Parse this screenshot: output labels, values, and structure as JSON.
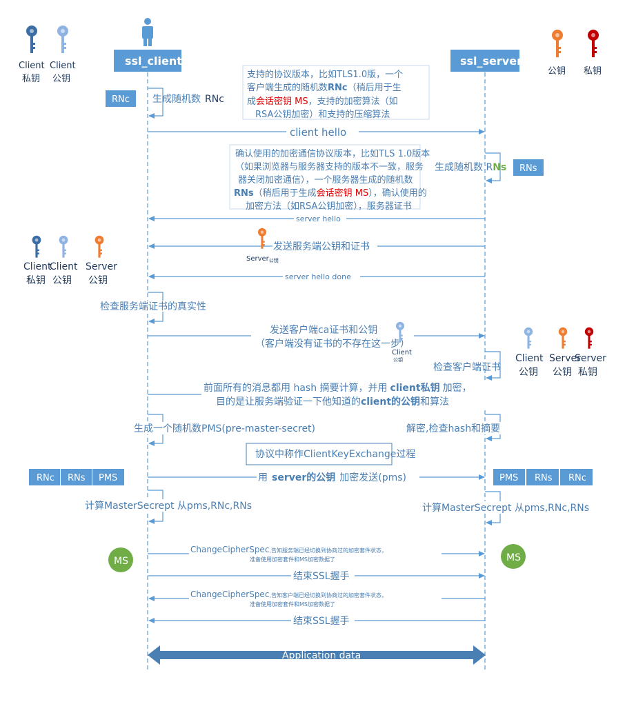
{
  "participants": {
    "client": "ssl_client",
    "server": "ssl_server"
  },
  "keys": {
    "top_client_private": [
      "Client",
      "私钥"
    ],
    "top_client_public": [
      "Client",
      "公钥"
    ],
    "top_server_public": "公钥",
    "top_server_private": "私钥",
    "mid_client_private": [
      "Client",
      "私钥"
    ],
    "mid_client_public": [
      "Client",
      "公钥"
    ],
    "mid_server_public": [
      "Server",
      "公钥"
    ],
    "right_client_public": [
      "Client",
      "公钥"
    ],
    "right_server_public": [
      "Server",
      "公钥"
    ],
    "right_server_private": [
      "Server",
      "私钥"
    ],
    "server_small": "Server",
    "server_small_sub": "公钥",
    "client_small": "Client",
    "client_small_sub": "公钥"
  },
  "badges": {
    "rnc": "RNc",
    "rns": "RNs",
    "pms": "PMS",
    "ms": "MS"
  },
  "steps": {
    "gen_rnc": "生成随机数",
    "gen_rnc_val": "RNc",
    "client_hello_note_1a": "支持的协议版本，比如TLS1.0版，一个",
    "client_hello_note_2a": "客户端生成的随机数",
    "client_hello_note_2b": "RNc",
    "client_hello_note_2c": "（稍后用于生",
    "client_hello_note_3a": "成",
    "client_hello_note_3b": "会话密钥 MS",
    "client_hello_note_3c": "，支持的加密算法（如",
    "client_hello_note_4": "RSA公钥加密）和支持的压缩算法",
    "client_hello": "client hello",
    "server_hello_note_1": "确认使用的加密通信协议版本，比如TLS 1.0版本",
    "server_hello_note_2": "（如果浏览器与服务器支持的版本不一致，服务",
    "server_hello_note_3": "器关闭加密通信），一个服务器生成的随机数",
    "server_hello_note_4a": "RNs",
    "server_hello_note_4b": "（稍后用于生成",
    "server_hello_note_4c": "会话密钥 MS",
    "server_hello_note_4d": "），确认使用的",
    "server_hello_note_5": "加密方法（如RSA公钥加密），服务器证书",
    "gen_rns": "生成随机数 R",
    "gen_rns_n": "Ns",
    "server_hello": "server hello",
    "send_cert": "发送服务端公钥和证书",
    "server_hello_done": "server hello done",
    "check_cert": "检查服务端证书的真实性",
    "send_client_cert_1": "发送客户端ca证书和公钥",
    "send_client_cert_2": "（客户端没有证书的不存在这一步）",
    "check_client_cert": "检查客户端证书",
    "hash_1a": "前面所有的消息都用 hash 摘要计算，并用",
    "hash_1b": "client私钥",
    "hash_1c": "加密，",
    "hash_2a": "目的是让服务端验证一下他知道的",
    "hash_2b": "client的公钥",
    "hash_2c": "和算法",
    "gen_pms": "生成一个随机数PMS(pre-master-secret)",
    "decrypt_check": "解密,检查hash和摘要",
    "key_exchange_note": "协议中称作ClientKeyExchange过程",
    "encrypt_send_a": "用",
    "encrypt_send_b": "server的公钥",
    "encrypt_send_c": "加密发送(pms)",
    "calc_ms_client": "计算MasterSecrept 从pms,RNc,RNs",
    "calc_ms_server": "计算MasterSecrept 从pms,RNc,RNs",
    "ccs_1_title": "ChangeCipherSpec",
    "ccs_1_line1": ",告知服务端已经切换到协商过的加密套件状态，",
    "ccs_1_line2": "准备使用加密套件和MS加密数据了",
    "finish_1": "结束SSL握手",
    "ccs_2_title": "ChangeCipherSpec",
    "ccs_2_line1": ",告知客户端已经切换到协商过的加密套件状态，",
    "ccs_2_line2": "准备使用加密套件和MS加密数据了",
    "finish_2": "结束SSL握手",
    "app_data": "Application data"
  },
  "colors": {
    "line": "#5b9bd5",
    "text": "#4a7fb3",
    "header": "#5b9bd5",
    "key_dark_blue": "#3c6ea5",
    "key_light_blue": "#8fb4e3",
    "key_orange": "#ed7d31",
    "key_red": "#c00000",
    "ms_green": "#70ad47",
    "red_text": "#e00000",
    "green_text": "#70ad47",
    "arrow_big": "#4a7fb3"
  }
}
